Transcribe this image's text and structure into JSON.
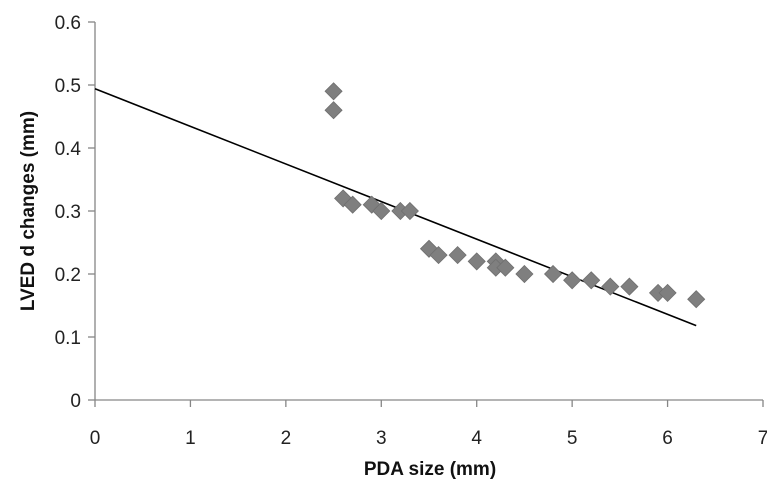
{
  "chart_data": {
    "type": "scatter",
    "xlabel": "PDA size (mm)",
    "ylabel": "LVED d changes (mm)",
    "xlim": [
      0,
      7
    ],
    "ylim": [
      0,
      0.6
    ],
    "x_ticks": [
      "0",
      "1",
      "2",
      "3",
      "4",
      "5",
      "6",
      "7"
    ],
    "y_ticks": [
      "0",
      "0.1",
      "0.2",
      "0.3",
      "0.4",
      "0.5",
      "0.6"
    ],
    "grid": false,
    "legend": "none",
    "marker": "diamond",
    "marker_color": "#7f7f7f",
    "points": [
      {
        "x": 2.5,
        "y": 0.49
      },
      {
        "x": 2.5,
        "y": 0.46
      },
      {
        "x": 2.6,
        "y": 0.32
      },
      {
        "x": 2.7,
        "y": 0.31
      },
      {
        "x": 2.9,
        "y": 0.31
      },
      {
        "x": 3.0,
        "y": 0.3
      },
      {
        "x": 3.2,
        "y": 0.3
      },
      {
        "x": 3.3,
        "y": 0.3
      },
      {
        "x": 3.5,
        "y": 0.24
      },
      {
        "x": 3.6,
        "y": 0.23
      },
      {
        "x": 3.8,
        "y": 0.23
      },
      {
        "x": 4.0,
        "y": 0.22
      },
      {
        "x": 4.2,
        "y": 0.22
      },
      {
        "x": 4.2,
        "y": 0.21
      },
      {
        "x": 4.3,
        "y": 0.21
      },
      {
        "x": 4.5,
        "y": 0.2
      },
      {
        "x": 4.8,
        "y": 0.2
      },
      {
        "x": 5.0,
        "y": 0.19
      },
      {
        "x": 5.2,
        "y": 0.19
      },
      {
        "x": 5.4,
        "y": 0.18
      },
      {
        "x": 5.6,
        "y": 0.18
      },
      {
        "x": 5.9,
        "y": 0.17
      },
      {
        "x": 6.0,
        "y": 0.17
      },
      {
        "x": 6.3,
        "y": 0.16
      }
    ],
    "trendline": {
      "type": "linear",
      "color": "#000000",
      "from": {
        "x": 0,
        "y": 0.494
      },
      "to": {
        "x": 6.3,
        "y": 0.118
      }
    }
  }
}
